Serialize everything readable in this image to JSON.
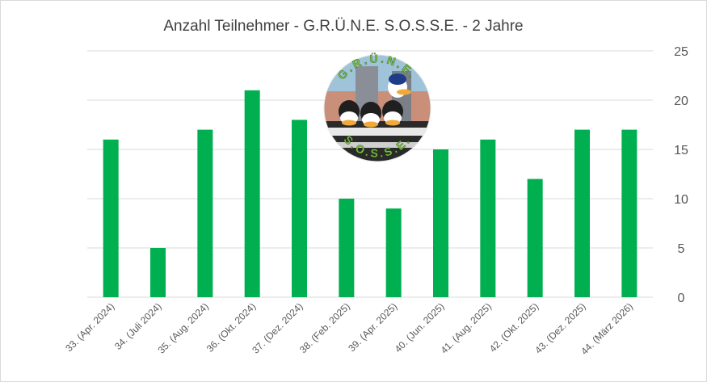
{
  "chart_data": {
    "type": "bar",
    "title": "Anzahl Teilnehmer - G.R.Ü.N.E. S.O.S.S.E. - 2 Jahre",
    "categories": [
      "33. (Apr. 2024)",
      "34. (Juli 2024)",
      "35. (Aug. 2024)",
      "36. (Okt. 2024)",
      "37. (Dez. 2024)",
      "38. (Feb. 2025)",
      "39. (Apr. 2025)",
      "40. (Jun. 2025)",
      "41. (Aug. 2025)",
      "42. (Okt. 2025)",
      "43. (Dez. 2025)",
      "44. (März 2026)"
    ],
    "values": [
      16,
      5,
      17,
      21,
      18,
      10,
      9,
      15,
      16,
      12,
      17,
      17
    ],
    "ylim": [
      0,
      25
    ],
    "yticks": [
      0,
      5,
      10,
      15,
      20,
      25
    ],
    "y_axis_side": "right",
    "grid": true,
    "legend": "none",
    "bar_color": "#00b050",
    "gridline_color": "#d9d9d9",
    "logo": {
      "icon": "gruene-sosse-logo-icon",
      "top_text": "G.R.Ü.N.E.",
      "bottom_text": "S.O.S.S.E."
    }
  }
}
